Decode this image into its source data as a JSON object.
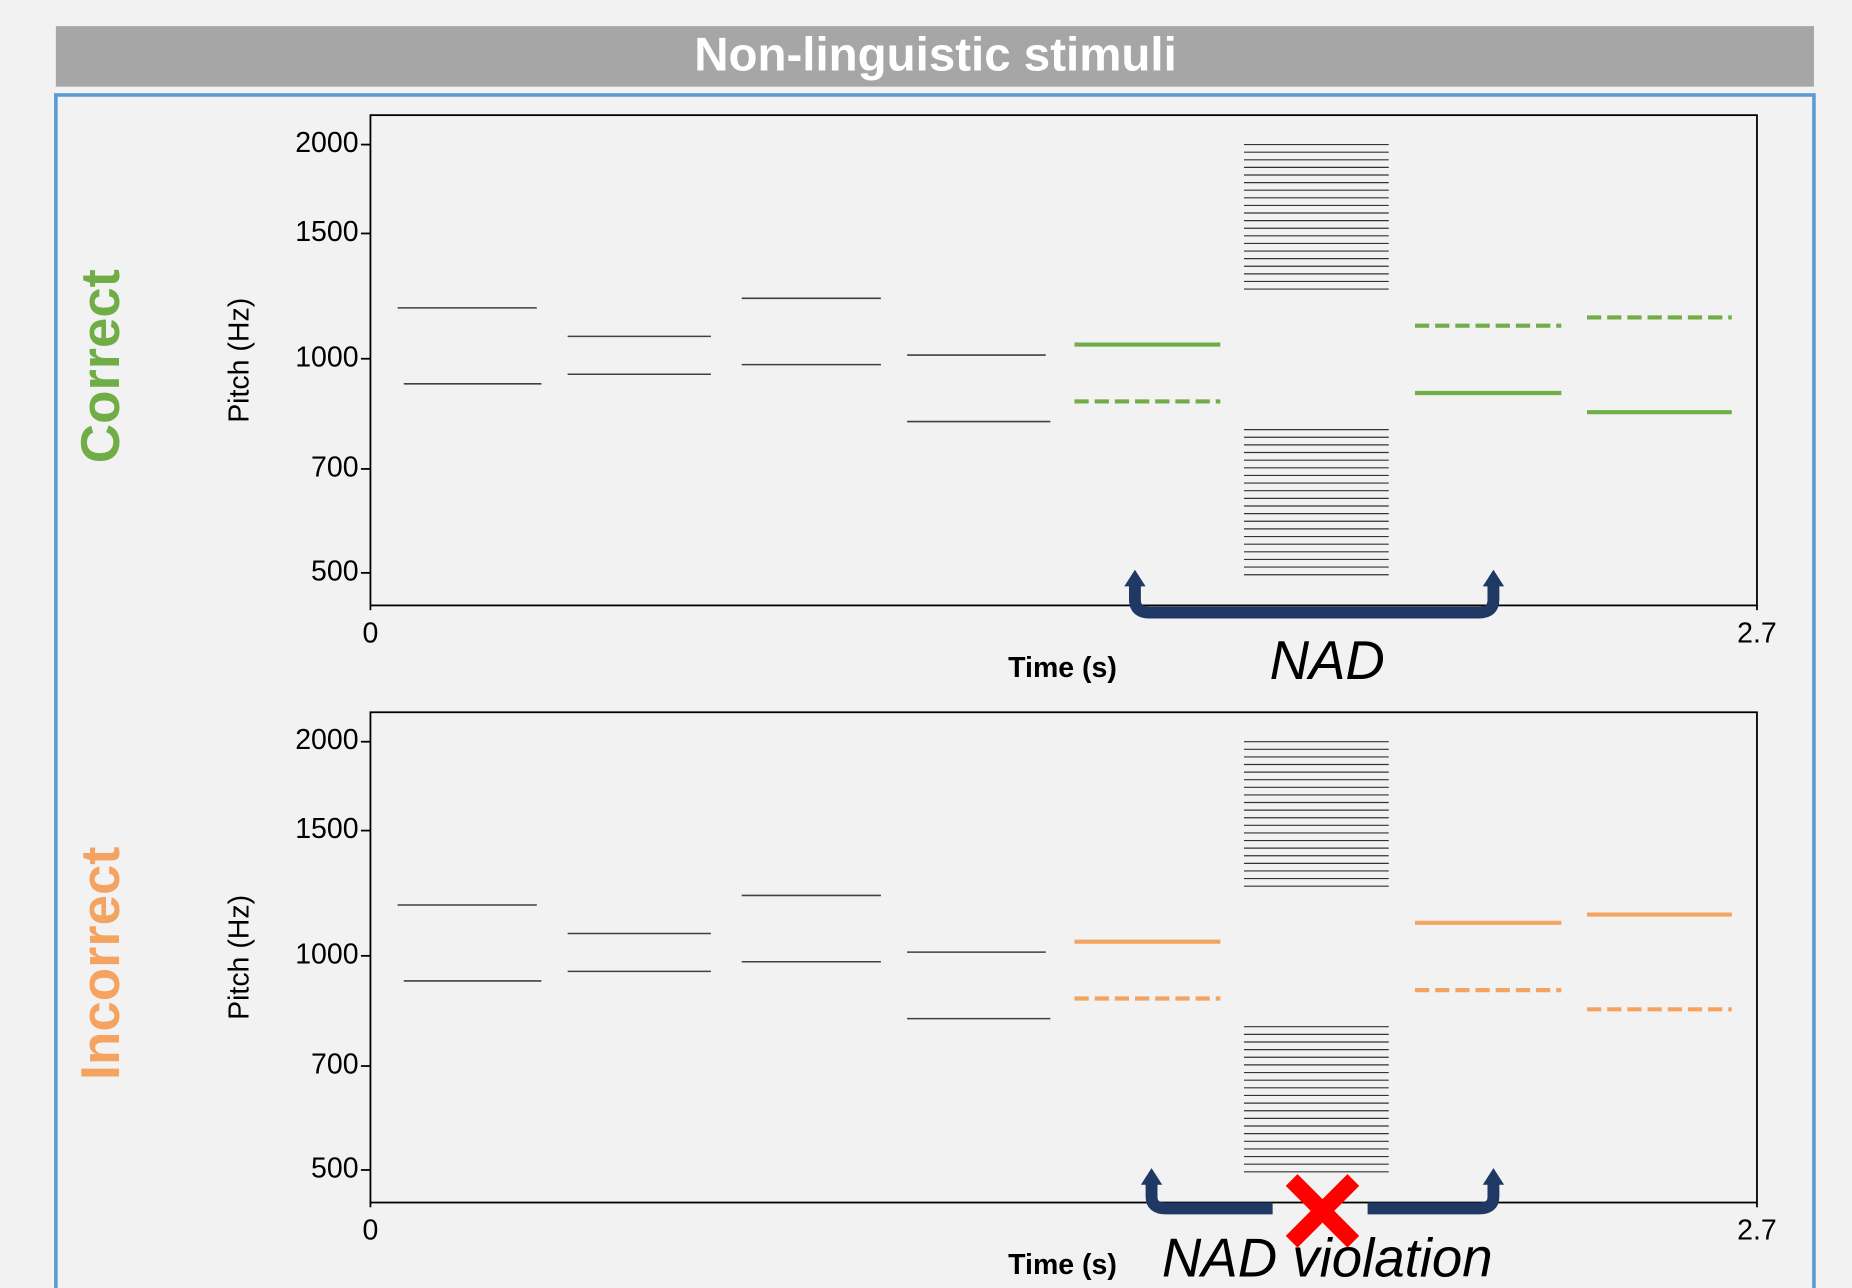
{
  "title": "Non-linguistic stimuli",
  "chart_data": [
    {
      "type": "tones",
      "side_label": "Correct",
      "side_color": "#70ad47",
      "ylabel": "Pitch (Hz)",
      "xlabel": "Time (s)",
      "annotation": "NAD",
      "xlim": [
        0,
        2.7
      ],
      "xticks": [
        0,
        2.7
      ],
      "ylim": [
        450,
        2200
      ],
      "yticks": [
        500,
        700,
        1000,
        1500,
        2000
      ],
      "log_y": true,
      "segments": [
        {
          "x0": 0.053,
          "x1": 0.324,
          "y": 1179,
          "color": "#404040",
          "dashed": false
        },
        {
          "x0": 0.065,
          "x1": 0.333,
          "y": 922,
          "color": "#404040",
          "dashed": false
        },
        {
          "x0": 0.384,
          "x1": 0.663,
          "y": 1075,
          "color": "#404040",
          "dashed": false
        },
        {
          "x0": 0.384,
          "x1": 0.663,
          "y": 951,
          "color": "#404040",
          "dashed": false
        },
        {
          "x0": 0.723,
          "x1": 0.994,
          "y": 1216,
          "color": "#404040",
          "dashed": false
        },
        {
          "x0": 0.723,
          "x1": 0.994,
          "y": 981,
          "color": "#404040",
          "dashed": false
        },
        {
          "x0": 1.045,
          "x1": 1.315,
          "y": 1012,
          "color": "#404040",
          "dashed": false
        },
        {
          "x0": 1.045,
          "x1": 1.324,
          "y": 816,
          "color": "#404040",
          "dashed": false
        },
        {
          "x0": 1.371,
          "x1": 1.655,
          "y": 1047,
          "color": "#70ad47",
          "dashed": false
        },
        {
          "x0": 1.371,
          "x1": 1.655,
          "y": 871,
          "color": "#70ad47",
          "dashed": true
        },
        {
          "x0": 2.034,
          "x1": 2.319,
          "y": 1113,
          "color": "#70ad47",
          "dashed": true
        },
        {
          "x0": 2.034,
          "x1": 2.319,
          "y": 895,
          "color": "#70ad47",
          "dashed": false
        },
        {
          "x0": 2.369,
          "x1": 2.651,
          "y": 1143,
          "color": "#70ad47",
          "dashed": true
        },
        {
          "x0": 2.369,
          "x1": 2.651,
          "y": 841,
          "color": "#70ad47",
          "dashed": false
        }
      ],
      "noise": [
        {
          "x0": 1.701,
          "x1": 1.983,
          "ylo": 1253,
          "yhi": 2000
        },
        {
          "x0": 1.701,
          "x1": 1.983,
          "ylo": 497,
          "yhi": 795
        }
      ]
    },
    {
      "type": "tones",
      "side_label": "Incorrect",
      "side_color": "#f4a460",
      "ylabel": "Pitch (Hz)",
      "xlabel": "Time (s)",
      "annotation": "NAD violation",
      "xlim": [
        0,
        2.7
      ],
      "xticks": [
        0,
        2.7
      ],
      "ylim": [
        450,
        2200
      ],
      "yticks": [
        500,
        700,
        1000,
        1500,
        2000
      ],
      "log_y": true,
      "segments": [
        {
          "x0": 0.053,
          "x1": 0.324,
          "y": 1179,
          "color": "#404040",
          "dashed": false
        },
        {
          "x0": 0.065,
          "x1": 0.333,
          "y": 922,
          "color": "#404040",
          "dashed": false
        },
        {
          "x0": 0.384,
          "x1": 0.663,
          "y": 1075,
          "color": "#404040",
          "dashed": false
        },
        {
          "x0": 0.384,
          "x1": 0.663,
          "y": 951,
          "color": "#404040",
          "dashed": false
        },
        {
          "x0": 0.723,
          "x1": 0.994,
          "y": 1216,
          "color": "#404040",
          "dashed": false
        },
        {
          "x0": 0.723,
          "x1": 0.994,
          "y": 981,
          "color": "#404040",
          "dashed": false
        },
        {
          "x0": 1.045,
          "x1": 1.315,
          "y": 1012,
          "color": "#404040",
          "dashed": false
        },
        {
          "x0": 1.045,
          "x1": 1.324,
          "y": 816,
          "color": "#404040",
          "dashed": false
        },
        {
          "x0": 1.371,
          "x1": 1.655,
          "y": 1047,
          "color": "#f4a460",
          "dashed": false
        },
        {
          "x0": 1.371,
          "x1": 1.655,
          "y": 871,
          "color": "#f4a460",
          "dashed": true
        },
        {
          "x0": 2.034,
          "x1": 2.319,
          "y": 1113,
          "color": "#f4a460",
          "dashed": false
        },
        {
          "x0": 2.034,
          "x1": 2.319,
          "y": 895,
          "color": "#f4a460",
          "dashed": true
        },
        {
          "x0": 2.369,
          "x1": 2.651,
          "y": 1143,
          "color": "#f4a460",
          "dashed": false
        },
        {
          "x0": 2.369,
          "x1": 2.651,
          "y": 841,
          "color": "#f4a460",
          "dashed": true
        }
      ],
      "noise": [
        {
          "x0": 1.701,
          "x1": 1.983,
          "ylo": 1253,
          "yhi": 2000
        },
        {
          "x0": 1.701,
          "x1": 1.983,
          "ylo": 497,
          "yhi": 795
        }
      ]
    }
  ]
}
